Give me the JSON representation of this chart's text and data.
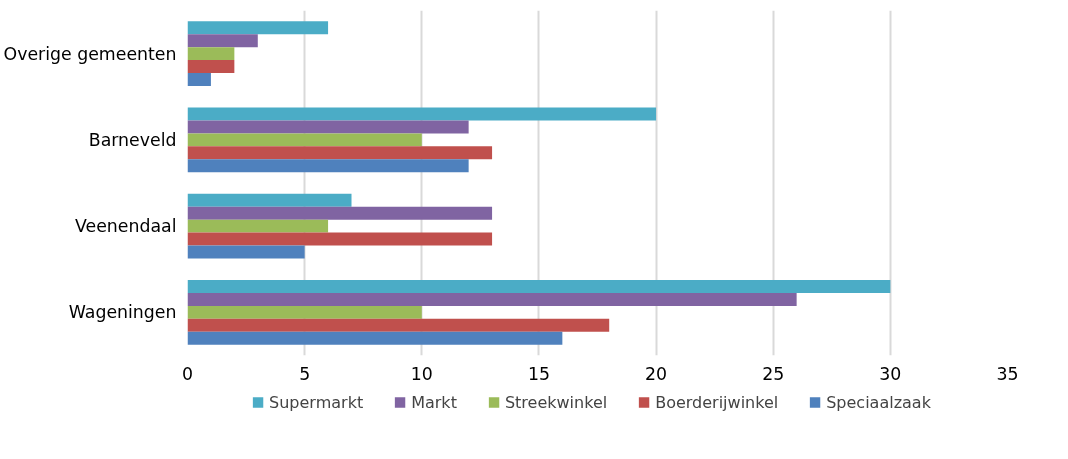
{
  "chart_data": {
    "type": "bar",
    "orientation": "horizontal",
    "categories": [
      "Overige gemeenten",
      "Barneveld",
      "Veenendaal",
      "Wageningen"
    ],
    "series": [
      {
        "name": "Supermarkt",
        "color": "#4bacc6",
        "values": [
          6,
          20,
          7,
          30
        ]
      },
      {
        "name": "Markt",
        "color": "#8064a2",
        "values": [
          3,
          12,
          13,
          26
        ]
      },
      {
        "name": "Streekwinkel",
        "color": "#9bbb59",
        "values": [
          2,
          10,
          6,
          10
        ]
      },
      {
        "name": "Boerderijwinkel",
        "color": "#c0504d",
        "values": [
          2,
          13,
          13,
          18
        ]
      },
      {
        "name": "Speciaalzaak",
        "color": "#4f81bd",
        "values": [
          1,
          12,
          5,
          16
        ]
      }
    ],
    "xlim": [
      0,
      35
    ],
    "xticks": [
      0,
      5,
      10,
      15,
      20,
      25,
      30,
      35
    ],
    "grid": "x",
    "legend": "bottom"
  }
}
